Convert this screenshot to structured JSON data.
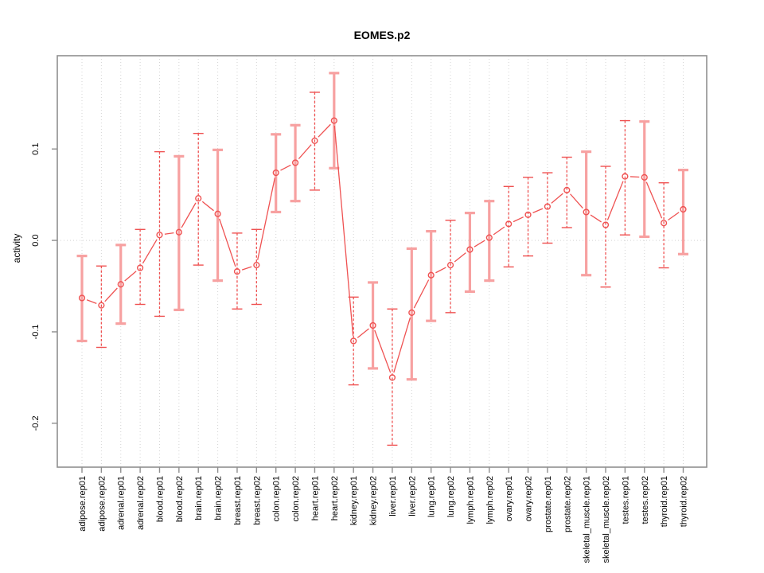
{
  "chart_data": {
    "type": "line",
    "subtype": "points-with-error-bars",
    "title": "EOMES.p2",
    "xlabel": "",
    "ylabel": "activity",
    "ylim": [
      -0.248,
      0.202
    ],
    "yticks": [
      0.1,
      0.0,
      -0.1,
      -0.2
    ],
    "ytick_labels": [
      "0.1",
      "0.0",
      "-0.1",
      "-0.2"
    ],
    "grid": {
      "vertical_dotted_per_category": true,
      "horizontal_dotted_at_zero": true
    },
    "legend": "none",
    "marker": "open-circle",
    "categories": [
      "adipose.rep01",
      "adipose.rep02",
      "adrenal.rep01",
      "adrenal.rep02",
      "blood.rep01",
      "blood.rep02",
      "brain.rep01",
      "brain.rep02",
      "breast.rep01",
      "breast.rep02",
      "colon.rep01",
      "colon.rep02",
      "heart.rep01",
      "heart.rep02",
      "kidney.rep01",
      "kidney.rep02",
      "liver.rep01",
      "liver.rep02",
      "lung.rep01",
      "lung.rep02",
      "lymph.rep01",
      "lymph.rep02",
      "ovary.rep01",
      "ovary.rep02",
      "prostate.rep01",
      "prostate.rep02",
      "skeletal_muscle.rep01",
      "skeletal_muscle.rep02",
      "testes.rep01",
      "testes.rep02",
      "thyroid.rep01",
      "thyroid.rep02"
    ],
    "series": [
      {
        "name": "activity",
        "values": [
          -0.063,
          -0.071,
          -0.048,
          -0.03,
          0.006,
          0.009,
          0.046,
          0.029,
          -0.034,
          -0.027,
          0.074,
          0.085,
          0.109,
          0.131,
          -0.11,
          -0.093,
          -0.15,
          -0.079,
          -0.038,
          -0.027,
          -0.01,
          0.003,
          0.018,
          0.028,
          0.037,
          0.055,
          0.031,
          0.017,
          0.07,
          0.069,
          0.019,
          0.034
        ],
        "lower": [
          -0.11,
          -0.117,
          -0.091,
          -0.07,
          -0.083,
          -0.076,
          -0.027,
          -0.044,
          -0.075,
          -0.07,
          0.031,
          0.043,
          0.055,
          0.079,
          -0.158,
          -0.14,
          -0.224,
          -0.152,
          -0.088,
          -0.079,
          -0.056,
          -0.044,
          -0.029,
          -0.017,
          -0.003,
          0.014,
          -0.038,
          -0.051,
          0.006,
          0.004,
          -0.03,
          -0.015
        ],
        "upper": [
          -0.017,
          -0.028,
          -0.005,
          0.012,
          0.097,
          0.092,
          0.117,
          0.099,
          0.008,
          0.012,
          0.116,
          0.126,
          0.162,
          0.183,
          -0.062,
          -0.046,
          -0.075,
          -0.009,
          0.01,
          0.022,
          0.03,
          0.043,
          0.059,
          0.069,
          0.074,
          0.091,
          0.097,
          0.081,
          0.131,
          0.13,
          0.063,
          0.077
        ],
        "bar_styles": [
          "solid",
          "dashed",
          "solid",
          "dashed",
          "dashed",
          "solid",
          "dashed",
          "solid",
          "dashed",
          "dashed",
          "solid",
          "solid",
          "dashed",
          "solid",
          "dashed",
          "solid",
          "dashed",
          "solid",
          "solid",
          "dashed",
          "solid",
          "solid",
          "dashed",
          "dashed",
          "dashed",
          "dashed",
          "solid",
          "dashed",
          "dashed",
          "solid",
          "dashed",
          "solid"
        ]
      }
    ]
  },
  "colors": {
    "series_red": "#ef5252",
    "solid_bar_pink": "#f7a1a1",
    "frame_gray": "#8f8f8f",
    "grid_gray": "#d4d4d4",
    "text_black": "#000000",
    "background": "#ffffff"
  }
}
